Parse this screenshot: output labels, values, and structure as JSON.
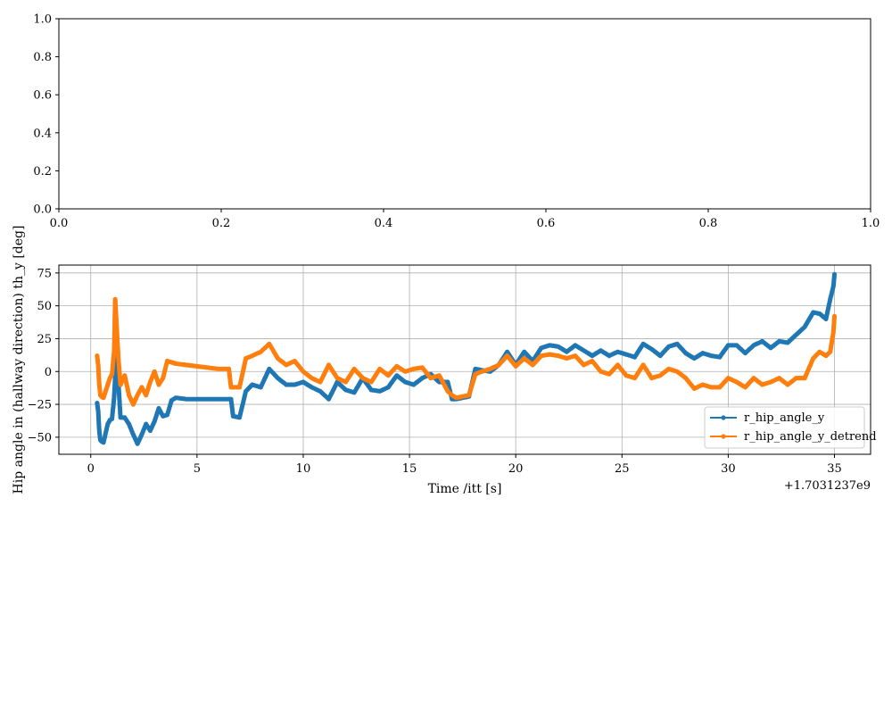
{
  "chart_data": [
    {
      "type": "line",
      "empty": true,
      "xlim": [
        0.0,
        1.0
      ],
      "ylim": [
        0.0,
        1.0
      ],
      "xticks": [
        "0.0",
        "0.2",
        "0.4",
        "0.6",
        "0.8",
        "1.0"
      ],
      "yticks": [
        "0.0",
        "0.2",
        "0.4",
        "0.6",
        "0.8",
        "1.0"
      ],
      "grid": false,
      "title": "",
      "xlabel": "",
      "ylabel": ""
    },
    {
      "type": "line",
      "title": "",
      "xlabel": "Time /itt [s]",
      "ylabel": "Hip angle in (hallway direction) th_y [deg]",
      "x_offset_label": "+1.7031237e9",
      "xlim": [
        -1.5,
        36.7
      ],
      "ylim": [
        -63,
        81
      ],
      "xticks": [
        "0",
        "5",
        "10",
        "15",
        "20",
        "25",
        "30",
        "35"
      ],
      "yticks": [
        "−50",
        "−25",
        "0",
        "25",
        "50",
        "75"
      ],
      "grid": true,
      "legend_position": "lower right",
      "x": [
        0.3,
        0.35,
        0.4,
        0.45,
        0.5,
        0.6,
        0.8,
        0.9,
        1.0,
        1.1,
        1.15,
        1.2,
        1.25,
        1.3,
        1.4,
        1.6,
        1.8,
        2.0,
        2.2,
        2.4,
        2.6,
        2.8,
        3.0,
        3.2,
        3.4,
        3.6,
        3.8,
        4.0,
        4.5,
        5.0,
        5.5,
        6.0,
        6.5,
        6.6,
        6.7,
        7.0,
        7.3,
        7.6,
        8.0,
        8.4,
        8.8,
        9.2,
        9.6,
        10.0,
        10.4,
        10.8,
        11.2,
        11.6,
        12.0,
        12.4,
        12.8,
        13.2,
        13.6,
        14.0,
        14.4,
        14.8,
        15.2,
        15.6,
        16.0,
        16.4,
        16.8,
        17.0,
        17.2,
        17.5,
        17.8,
        18.1,
        18.4,
        18.8,
        19.2,
        19.6,
        20.0,
        20.4,
        20.8,
        21.2,
        21.6,
        22.0,
        22.4,
        22.8,
        23.2,
        23.6,
        24.0,
        24.4,
        24.8,
        25.2,
        25.6,
        26.0,
        26.4,
        26.8,
        27.2,
        27.6,
        28.0,
        28.4,
        28.8,
        29.2,
        29.6,
        30.0,
        30.4,
        30.8,
        31.2,
        31.6,
        32.0,
        32.4,
        32.8,
        33.2,
        33.6,
        34.0,
        34.3,
        34.6,
        34.8,
        34.95,
        35.0
      ],
      "series": [
        {
          "name": "r_hip_angle_y",
          "color": "#1f77b4",
          "values": [
            -24,
            -30,
            -45,
            -52,
            -53,
            -54,
            -40,
            -37,
            -36,
            -20,
            -5,
            15,
            10,
            -8,
            -35,
            -35,
            -40,
            -48,
            -55,
            -48,
            -40,
            -45,
            -38,
            -28,
            -34,
            -33,
            -22,
            -20,
            -21,
            -21,
            -21,
            -21,
            -21,
            -21,
            -34,
            -35,
            -15,
            -10,
            -12,
            2,
            -5,
            -10,
            -10,
            -8,
            -12,
            -15,
            -21,
            -8,
            -14,
            -16,
            -5,
            -14,
            -15,
            -12,
            -3,
            -8,
            -10,
            -5,
            -2,
            -8,
            -8,
            -21,
            -21,
            -20,
            -19,
            2,
            1,
            0,
            5,
            15,
            5,
            15,
            8,
            18,
            20,
            19,
            15,
            20,
            16,
            12,
            16,
            12,
            15,
            13,
            11,
            21,
            17,
            12,
            19,
            21,
            14,
            10,
            14,
            12,
            11,
            20,
            20,
            14,
            20,
            23,
            18,
            23,
            22,
            28,
            34,
            45,
            44,
            40,
            55,
            65,
            74
          ]
        },
        {
          "name": "r_hip_angle_y_detrend",
          "color": "#ff7f0e",
          "values": [
            12,
            5,
            -10,
            -18,
            -19,
            -20,
            -10,
            -5,
            -2,
            15,
            55,
            40,
            25,
            10,
            -10,
            -3,
            -18,
            -25,
            -18,
            -12,
            -18,
            -8,
            0,
            -10,
            -5,
            8,
            7,
            6,
            5,
            4,
            3,
            2,
            2,
            -12,
            -12,
            -12,
            10,
            12,
            15,
            21,
            10,
            5,
            8,
            0,
            -5,
            -8,
            5,
            -5,
            -8,
            2,
            -5,
            -8,
            2,
            -3,
            4,
            0,
            2,
            3,
            -5,
            -3,
            -15,
            -18,
            -20,
            -19,
            -18,
            -2,
            0,
            2,
            5,
            12,
            4,
            10,
            5,
            12,
            13,
            12,
            10,
            12,
            5,
            8,
            0,
            -2,
            5,
            -3,
            -5,
            5,
            -5,
            -3,
            2,
            0,
            -5,
            -13,
            -10,
            -12,
            -12,
            -5,
            -8,
            -12,
            -5,
            -10,
            -8,
            -5,
            -10,
            -5,
            -5,
            10,
            15,
            12,
            15,
            30,
            42
          ]
        }
      ]
    }
  ]
}
